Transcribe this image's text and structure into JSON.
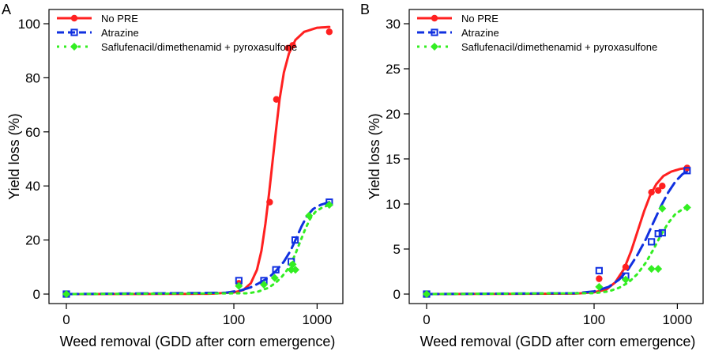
{
  "chart_data": [
    {
      "type": "line",
      "panel_label": "A",
      "xlabel": "Weed removal (GDD after corn emergence)",
      "ylabel": "Yield loss (%)",
      "x_scale": "log",
      "x_ticks": [
        "0",
        "100",
        "1000"
      ],
      "y_ticks": [
        "0",
        "20",
        "40",
        "60",
        "80",
        "100"
      ],
      "ylim": [
        0,
        100
      ],
      "legend_position": "top-left",
      "series": [
        {
          "name": "No PRE",
          "color": "#ff2020",
          "line_style": "solid",
          "marker": "circle",
          "points": [
            [
              0,
              0
            ],
            [
              115,
              4
            ],
            [
              270,
              34
            ],
            [
              325,
              72
            ],
            [
              450,
              91
            ],
            [
              510,
              92
            ],
            [
              1400,
              97
            ]
          ],
          "curve": [
            [
              0,
              0
            ],
            [
              50,
              0.1
            ],
            [
              100,
              0.6
            ],
            [
              130,
              1.5
            ],
            [
              160,
              4
            ],
            [
              190,
              9
            ],
            [
              215,
              16
            ],
            [
              240,
              26
            ],
            [
              265,
              37
            ],
            [
              290,
              48
            ],
            [
              320,
              60
            ],
            [
              355,
              72
            ],
            [
              400,
              82
            ],
            [
              460,
              89
            ],
            [
              550,
              94
            ],
            [
              700,
              97
            ],
            [
              1000,
              98.5
            ],
            [
              1400,
              98.8
            ]
          ]
        },
        {
          "name": "Atrazine",
          "color": "#1030e0",
          "line_style": "dashed",
          "marker": "square",
          "points": [
            [
              0,
              0
            ],
            [
              115,
              5
            ],
            [
              230,
              5
            ],
            [
              320,
              9
            ],
            [
              490,
              12
            ],
            [
              545,
              20
            ],
            [
              1400,
              34
            ]
          ],
          "curve": [
            [
              0,
              0
            ],
            [
              80,
              0.5
            ],
            [
              120,
              1.3
            ],
            [
              160,
              2.5
            ],
            [
              200,
              4
            ],
            [
              260,
              6
            ],
            [
              320,
              8.5
            ],
            [
              400,
              12
            ],
            [
              480,
              16
            ],
            [
              560,
              20.5
            ],
            [
              650,
              25
            ],
            [
              760,
              29
            ],
            [
              900,
              31.5
            ],
            [
              1100,
              33
            ],
            [
              1400,
              34
            ]
          ]
        },
        {
          "name": "Saflufenacil/dimethenamid + pyroxasulfone",
          "color": "#33ee22",
          "line_style": "dotted",
          "marker": "diamond",
          "points": [
            [
              0,
              0
            ],
            [
              115,
              3
            ],
            [
              230,
              3.5
            ],
            [
              310,
              6
            ],
            [
              490,
              9
            ],
            [
              510,
              11
            ],
            [
              550,
              9
            ],
            [
              800,
              29
            ],
            [
              1400,
              33
            ]
          ],
          "curve": [
            [
              0,
              0
            ],
            [
              150,
              0.3
            ],
            [
              200,
              1
            ],
            [
              260,
              2.3
            ],
            [
              320,
              4.2
            ],
            [
              380,
              6.5
            ],
            [
              440,
              9
            ],
            [
              500,
              12
            ],
            [
              560,
              15.5
            ],
            [
              630,
              19.5
            ],
            [
              720,
              24
            ],
            [
              830,
              28
            ],
            [
              960,
              30.5
            ],
            [
              1150,
              32
            ],
            [
              1400,
              33
            ]
          ]
        }
      ]
    },
    {
      "type": "line",
      "panel_label": "B",
      "xlabel": "Weed removal (GDD after corn emergence)",
      "ylabel": "Yield loss (%)",
      "x_scale": "log",
      "x_ticks": [
        "0",
        "100",
        "1000"
      ],
      "y_ticks": [
        "0",
        "5",
        "10",
        "15",
        "20",
        "25",
        "30"
      ],
      "ylim": [
        0,
        30
      ],
      "legend_position": "top-left",
      "series": [
        {
          "name": "No PRE",
          "color": "#ff2020",
          "line_style": "solid",
          "marker": "circle",
          "points": [
            [
              0,
              0
            ],
            [
              115,
              1.7
            ],
            [
              240,
              3
            ],
            [
              490,
              11.3
            ],
            [
              590,
              11.5
            ],
            [
              660,
              12
            ],
            [
              1310,
              14
            ]
          ],
          "curve": [
            [
              0,
              0
            ],
            [
              60,
              0.05
            ],
            [
              100,
              0.2
            ],
            [
              140,
              0.5
            ],
            [
              180,
              1.3
            ],
            [
              230,
              2.8
            ],
            [
              280,
              4.8
            ],
            [
              340,
              7.2
            ],
            [
              400,
              9.2
            ],
            [
              470,
              10.9
            ],
            [
              560,
              12.2
            ],
            [
              680,
              13.1
            ],
            [
              850,
              13.6
            ],
            [
              1100,
              13.9
            ],
            [
              1350,
              14
            ]
          ]
        },
        {
          "name": "Atrazine",
          "color": "#1030e0",
          "line_style": "dashed",
          "marker": "square",
          "points": [
            [
              0,
              0
            ],
            [
              115,
              2.6
            ],
            [
              240,
              2
            ],
            [
              490,
              5.8
            ],
            [
              590,
              6.7
            ],
            [
              660,
              6.8
            ],
            [
              1310,
              13.7
            ]
          ],
          "curve": [
            [
              0,
              0
            ],
            [
              60,
              0.1
            ],
            [
              100,
              0.3
            ],
            [
              150,
              0.8
            ],
            [
              200,
              1.6
            ],
            [
              260,
              2.8
            ],
            [
              330,
              4.3
            ],
            [
              420,
              6.1
            ],
            [
              520,
              8
            ],
            [
              640,
              9.8
            ],
            [
              780,
              11.3
            ],
            [
              950,
              12.5
            ],
            [
              1150,
              13.3
            ],
            [
              1350,
              13.7
            ]
          ]
        },
        {
          "name": "Saflufenacil/dimethenamid + pyroxasulfone",
          "color": "#33ee22",
          "line_style": "dotted",
          "marker": "diamond",
          "points": [
            [
              0,
              0
            ],
            [
              115,
              0.8
            ],
            [
              240,
              1.6
            ],
            [
              490,
              2.8
            ],
            [
              590,
              2.8
            ],
            [
              660,
              9.5
            ],
            [
              1310,
              9.6
            ]
          ],
          "curve": [
            [
              0,
              0
            ],
            [
              100,
              0.1
            ],
            [
              150,
              0.3
            ],
            [
              200,
              0.7
            ],
            [
              260,
              1.3
            ],
            [
              330,
              2.2
            ],
            [
              420,
              3.5
            ],
            [
              520,
              5
            ],
            [
              640,
              6.6
            ],
            [
              780,
              7.9
            ],
            [
              950,
              8.9
            ],
            [
              1150,
              9.4
            ],
            [
              1350,
              9.6
            ]
          ]
        }
      ]
    }
  ]
}
